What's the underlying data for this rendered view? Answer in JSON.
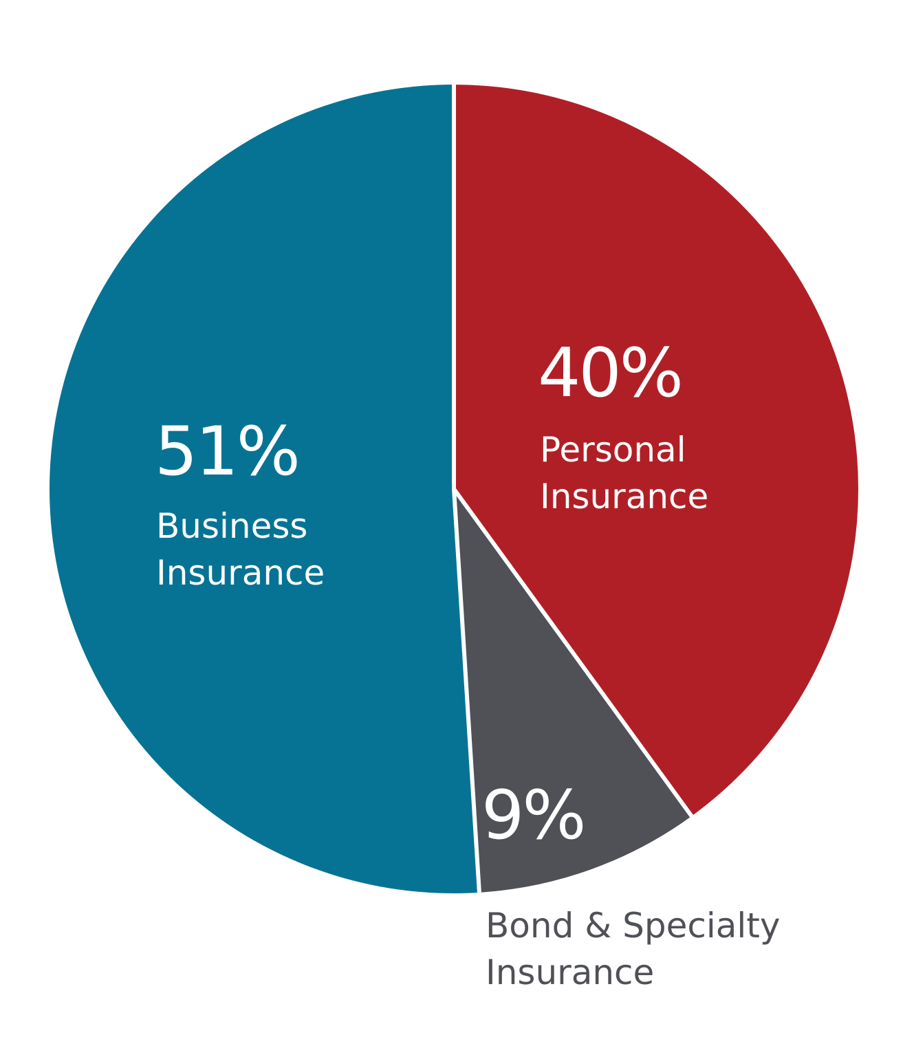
{
  "chart_data": {
    "type": "pie",
    "slices": [
      {
        "label": [
          "Personal",
          "Insurance"
        ],
        "value": 40,
        "value_text": "40%",
        "color": "#b11f26",
        "label_color": "#ffffff"
      },
      {
        "label": [
          "Bond & Specialty",
          "Insurance"
        ],
        "value": 9,
        "value_text": "9%",
        "color": "#4f5156",
        "label_color": "#4f5156"
      },
      {
        "label": [
          "Business",
          "Insurance"
        ],
        "value": 51,
        "value_text": "51%",
        "color": "#067394",
        "label_color": "#ffffff"
      }
    ],
    "start_angle": "12 o'clock",
    "direction": "clockwise",
    "separator_color": "#ffffff"
  }
}
